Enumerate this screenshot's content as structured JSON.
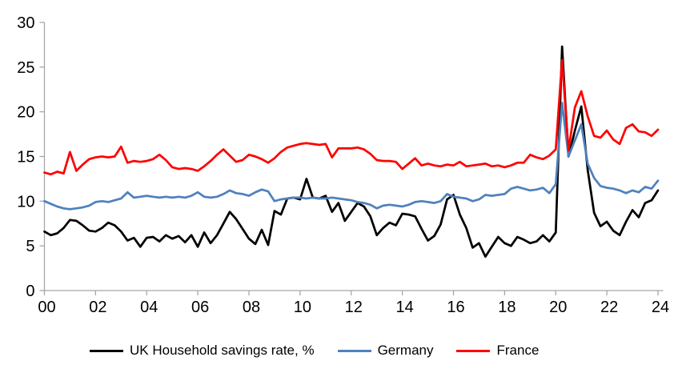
{
  "chart_data": {
    "type": "line",
    "title": "",
    "x_unit": "year (quarterly observations)",
    "x_start": 2000,
    "x_step_years": 0.25,
    "xlim": [
      2000,
      2024.25
    ],
    "ylim": [
      0,
      30
    ],
    "y_ticks": [
      0,
      5,
      10,
      15,
      20,
      25,
      30
    ],
    "x_tick_labels": [
      "00",
      "02",
      "04",
      "06",
      "08",
      "10",
      "12",
      "14",
      "16",
      "18",
      "20",
      "22",
      "24"
    ],
    "x_tick_year_step": 2,
    "grid": false,
    "legend_position": "bottom",
    "axis_color": "#A6A6A6",
    "background_color": "#FFFFFF",
    "series": [
      {
        "name": "UK Household savings rate, %",
        "color": "#000000",
        "values": [
          6.6,
          6.2,
          6.4,
          7.0,
          7.9,
          7.8,
          7.3,
          6.7,
          6.6,
          7.0,
          7.6,
          7.3,
          6.6,
          5.6,
          5.9,
          4.9,
          5.9,
          6.0,
          5.5,
          6.2,
          5.8,
          6.1,
          5.4,
          6.2,
          4.9,
          6.5,
          5.3,
          6.2,
          7.5,
          8.8,
          8.0,
          6.9,
          5.8,
          5.2,
          6.8,
          5.1,
          8.9,
          8.5,
          10.3,
          10.4,
          10.2,
          12.5,
          10.4,
          10.3,
          10.6,
          8.8,
          9.8,
          7.8,
          8.8,
          9.8,
          9.4,
          8.3,
          6.2,
          7.0,
          7.6,
          7.3,
          8.6,
          8.5,
          8.3,
          6.9,
          5.6,
          6.1,
          7.4,
          10.2,
          10.7,
          8.5,
          7.0,
          4.8,
          5.3,
          3.8,
          4.9,
          6.0,
          5.3,
          5.0,
          6.0,
          5.7,
          5.3,
          5.5,
          6.2,
          5.5,
          6.5,
          27.3,
          15.0,
          17.9,
          20.6,
          13.5,
          8.7,
          7.2,
          7.7,
          6.7,
          6.2,
          7.7,
          9.0,
          8.2,
          9.8,
          10.1,
          11.2
        ]
      },
      {
        "name": "Germany",
        "color": "#4F81BD",
        "values": [
          10.0,
          9.7,
          9.4,
          9.2,
          9.1,
          9.2,
          9.3,
          9.5,
          9.9,
          10.0,
          9.9,
          10.1,
          10.3,
          11.0,
          10.4,
          10.5,
          10.6,
          10.5,
          10.4,
          10.5,
          10.4,
          10.5,
          10.4,
          10.6,
          11.0,
          10.5,
          10.4,
          10.5,
          10.8,
          11.2,
          10.9,
          10.8,
          10.6,
          11.0,
          11.3,
          11.1,
          10.0,
          10.2,
          10.3,
          10.4,
          10.4,
          10.3,
          10.4,
          10.3,
          10.3,
          10.4,
          10.3,
          10.2,
          10.1,
          9.9,
          9.8,
          9.6,
          9.2,
          9.5,
          9.6,
          9.5,
          9.4,
          9.6,
          9.9,
          10.0,
          9.9,
          9.8,
          10.0,
          10.8,
          10.5,
          10.4,
          10.3,
          10.0,
          10.2,
          10.7,
          10.6,
          10.7,
          10.8,
          11.4,
          11.6,
          11.4,
          11.2,
          11.3,
          11.5,
          10.9,
          11.9,
          21.0,
          15.0,
          16.8,
          18.6,
          14.2,
          12.6,
          11.7,
          11.5,
          11.4,
          11.2,
          10.9,
          11.2,
          11.0,
          11.6,
          11.4,
          12.3
        ]
      },
      {
        "name": "France",
        "color": "#FF0000",
        "values": [
          13.2,
          13.0,
          13.3,
          13.1,
          15.5,
          13.4,
          14.1,
          14.7,
          14.9,
          15.0,
          14.9,
          15.0,
          16.1,
          14.3,
          14.5,
          14.4,
          14.5,
          14.7,
          15.2,
          14.6,
          13.8,
          13.6,
          13.7,
          13.6,
          13.4,
          13.9,
          14.5,
          15.2,
          15.8,
          15.1,
          14.4,
          14.6,
          15.2,
          15.0,
          14.7,
          14.3,
          14.8,
          15.5,
          16.0,
          16.2,
          16.4,
          16.5,
          16.4,
          16.3,
          16.4,
          14.9,
          15.9,
          15.9,
          15.9,
          16.0,
          15.8,
          15.3,
          14.6,
          14.5,
          14.5,
          14.4,
          13.6,
          14.2,
          14.8,
          14.0,
          14.2,
          14.0,
          13.9,
          14.1,
          14.0,
          14.4,
          13.9,
          14.0,
          14.1,
          14.2,
          13.9,
          14.0,
          13.8,
          14.0,
          14.3,
          14.3,
          15.2,
          14.9,
          14.7,
          15.1,
          15.8,
          25.8,
          15.7,
          20.5,
          22.3,
          19.5,
          17.3,
          17.1,
          17.9,
          16.9,
          16.4,
          18.2,
          18.6,
          17.8,
          17.7,
          17.3,
          18.0
        ]
      }
    ]
  }
}
